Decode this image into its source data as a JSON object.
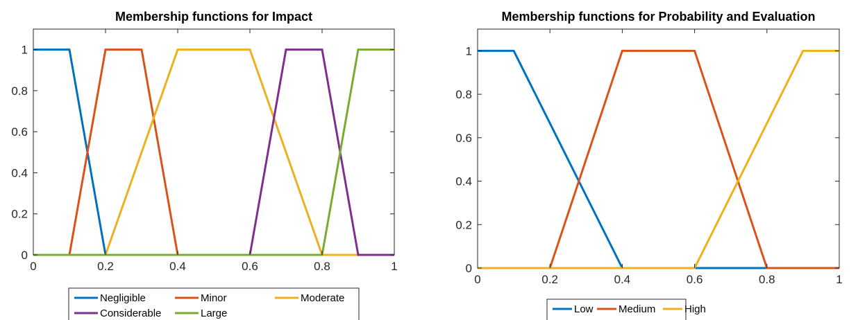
{
  "chart_data": [
    {
      "type": "line",
      "title": "Membership functions for Impact",
      "xlabel": "",
      "ylabel": "",
      "xlim": [
        0,
        1
      ],
      "ylim": [
        0,
        1.1
      ],
      "xticks": [
        "0",
        "0.2",
        "0.4",
        "0.6",
        "0.8",
        "1"
      ],
      "yticks": [
        "0",
        "0.2",
        "0.4",
        "0.6",
        "0.8",
        "1"
      ],
      "legend_position": "below",
      "grid": false,
      "series": [
        {
          "name": "Negligible",
          "color": "#0072BD",
          "x": [
            0,
            0.1,
            0.2,
            0.2,
            1
          ],
          "y": [
            1,
            1,
            0,
            0,
            0
          ]
        },
        {
          "name": "Minor",
          "color": "#D95319",
          "x": [
            0,
            0.1,
            0.2,
            0.3,
            0.4,
            1
          ],
          "y": [
            0,
            0,
            1,
            1,
            0,
            0
          ]
        },
        {
          "name": "Moderate",
          "color": "#EDB120",
          "x": [
            0,
            0.2,
            0.4,
            0.6,
            0.8,
            1
          ],
          "y": [
            0,
            0,
            1,
            1,
            0,
            0
          ]
        },
        {
          "name": "Considerable",
          "color": "#7E2F8E",
          "x": [
            0,
            0.6,
            0.7,
            0.8,
            0.9,
            1
          ],
          "y": [
            0,
            0,
            1,
            1,
            0,
            0
          ]
        },
        {
          "name": "Large",
          "color": "#77AC30",
          "x": [
            0,
            0.8,
            0.9,
            1
          ],
          "y": [
            0,
            0,
            1,
            1
          ]
        }
      ]
    },
    {
      "type": "line",
      "title": "Membership functions for Probability and Evaluation",
      "xlabel": "",
      "ylabel": "",
      "xlim": [
        0,
        1
      ],
      "ylim": [
        0,
        1.1
      ],
      "xticks": [
        "0",
        "0.2",
        "0.4",
        "0.6",
        "0.8",
        "1"
      ],
      "yticks": [
        "0",
        "0.2",
        "0.4",
        "0.6",
        "0.8",
        "1"
      ],
      "legend_position": "below",
      "grid": false,
      "series": [
        {
          "name": "Low",
          "color": "#0072BD",
          "x": [
            0,
            0.1,
            0.4,
            1
          ],
          "y": [
            1,
            1,
            0,
            0
          ]
        },
        {
          "name": "Medium",
          "color": "#D95319",
          "x": [
            0,
            0.2,
            0.4,
            0.6,
            0.8,
            1
          ],
          "y": [
            0,
            0,
            1,
            1,
            0,
            0
          ]
        },
        {
          "name": "High",
          "color": "#EDB120",
          "x": [
            0,
            0.6,
            0.9,
            1
          ],
          "y": [
            0,
            0,
            1,
            1
          ]
        }
      ]
    }
  ]
}
